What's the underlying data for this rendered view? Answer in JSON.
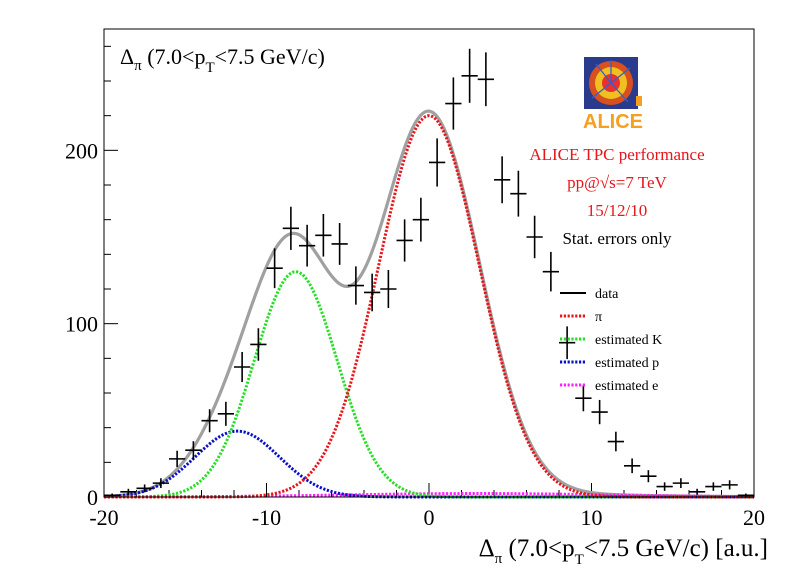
{
  "chart_data": {
    "type": "line",
    "title": "Δπ (7.0<pT<7.5 GeV/c)",
    "title_parts": {
      "delta": "Δ",
      "pi": "π",
      "lead": " (7.0<p",
      "T": "T",
      "tail": "<7.5 GeV/c)"
    },
    "xlabel": "Δπ (7.0<pT<7.5 GeV/c) [a.u.]",
    "xlabel_parts": {
      "delta": "Δ",
      "pi": "π",
      "lead": " (7.0<p",
      "T": "T",
      "tail": "<7.5 GeV/c) [a.u.]"
    },
    "ylabel": "",
    "xlim": [
      -20,
      20
    ],
    "ylim": [
      0,
      270
    ],
    "x_ticks": [
      -20,
      -10,
      0,
      10,
      20
    ],
    "x_tick_labels": [
      "-20",
      "-10",
      "0",
      "10",
      "20"
    ],
    "y_ticks": [
      0,
      100,
      200
    ],
    "y_tick_labels": [
      "0",
      "100",
      "200"
    ],
    "logo": {
      "text": "ALICE"
    },
    "annotations": [
      "ALICE TPC performance",
      "pp@√s=7 TeV",
      "15/12/10",
      "Stat. errors only"
    ],
    "annotation_colors": [
      "#e8151b",
      "#e8151b",
      "#e8151b",
      "#000000"
    ],
    "legend": [
      {
        "label": "data",
        "color": "#000000",
        "style": "solid"
      },
      {
        "label": "π",
        "color": "#e8151b",
        "style": "dotted"
      },
      {
        "label": "estimated K",
        "color": "#22e022",
        "style": "dotted"
      },
      {
        "label": "estimated p",
        "color": "#0a10c8",
        "style": "dotted"
      },
      {
        "label": "estimated e",
        "color": "#ff20ff",
        "style": "dotted"
      }
    ],
    "fit_color": "#a0a0a0",
    "components": [
      {
        "name": "π",
        "amplitude": 220,
        "mean": 0.0,
        "sigma": 3.1,
        "color": "#e8151b"
      },
      {
        "name": "estimated K",
        "amplitude": 130,
        "mean": -8.2,
        "sigma": 2.55,
        "color": "#22e022"
      },
      {
        "name": "estimated p",
        "amplitude": 38,
        "mean": -11.8,
        "sigma": 2.6,
        "color": "#0a10c8"
      },
      {
        "name": "estimated e",
        "amplitude": 2,
        "mean": 3.0,
        "sigma": 8.0,
        "color": "#ff20ff"
      }
    ],
    "series": [
      {
        "name": "data",
        "x": [
          -19.5,
          -18.5,
          -17.5,
          -16.5,
          -15.5,
          -14.5,
          -13.5,
          -12.5,
          -11.5,
          -10.5,
          -9.5,
          -8.5,
          -7.5,
          -6.5,
          -5.5,
          -4.5,
          -3.5,
          -2.5,
          -1.5,
          -0.5,
          0.5,
          1.5,
          2.5,
          3.5,
          4.5,
          5.5,
          6.5,
          7.5,
          8.5,
          9.5,
          10.5,
          11.5,
          12.5,
          13.5,
          14.5,
          15.5,
          16.5,
          17.5,
          18.5,
          19.5
        ],
        "y": [
          1,
          3,
          5,
          8,
          22,
          27,
          44,
          48,
          75,
          88,
          132,
          155,
          145,
          151,
          146,
          122,
          118,
          120,
          148,
          160,
          193,
          227,
          243,
          241,
          183,
          175,
          150,
          130,
          89,
          57,
          49,
          32,
          18,
          12,
          6,
          8,
          3,
          6,
          7,
          1
        ]
      }
    ]
  }
}
